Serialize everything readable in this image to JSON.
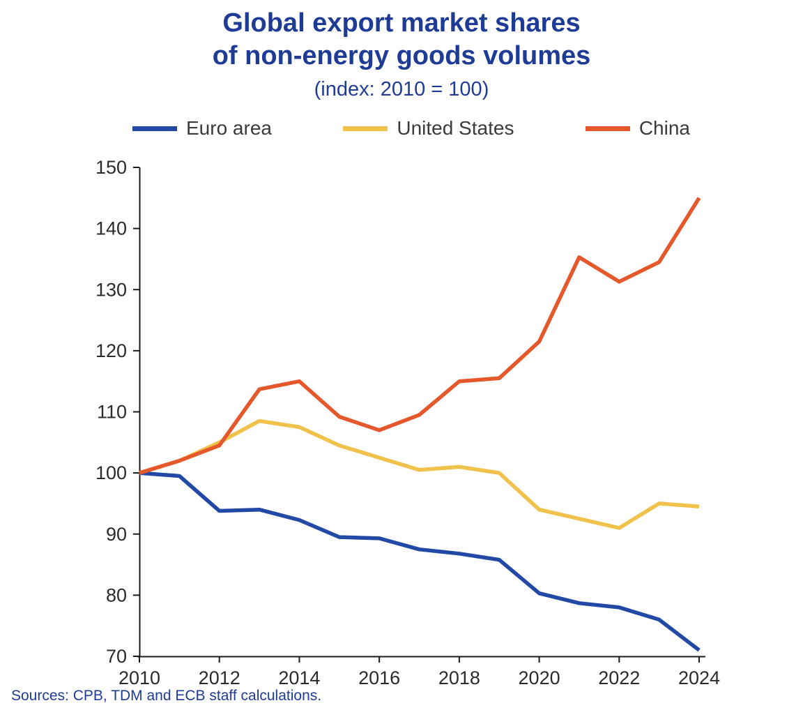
{
  "title_line1": "Global export market shares",
  "title_line2": "of non-energy goods volumes",
  "subtitle": "(index: 2010 = 100)",
  "source": "Sources: CPB, TDM and ECB staff calculations.",
  "colors": {
    "title": "#1E3C96",
    "axis": "#1a1a1a",
    "tick_label": "#2b2b2b"
  },
  "chart_data": {
    "type": "line",
    "title": "Global export market shares of non-energy goods volumes",
    "subtitle": "(index: 2010 = 100)",
    "xlabel": "",
    "ylabel": "",
    "x": [
      2010,
      2011,
      2012,
      2013,
      2014,
      2015,
      2016,
      2017,
      2018,
      2019,
      2020,
      2021,
      2022,
      2023,
      2024
    ],
    "series": [
      {
        "name": "Euro area",
        "color": "#2149A5",
        "values": [
          100,
          99.5,
          93.8,
          94,
          92.3,
          89.5,
          89.3,
          87.5,
          86.8,
          85.8,
          80.3,
          78.7,
          78,
          76,
          71
        ]
      },
      {
        "name": "United States",
        "color": "#F0C14B",
        "values": [
          100,
          102,
          105,
          108.5,
          107.5,
          104.5,
          102.5,
          100.5,
          101,
          100,
          94,
          92.5,
          91,
          95,
          94.5
        ]
      },
      {
        "name": "China",
        "color": "#E4582C",
        "values": [
          100,
          102,
          104.5,
          113.7,
          115,
          109.2,
          107,
          109.5,
          115,
          115.5,
          121.5,
          135.3,
          131.3,
          134.5,
          145
        ]
      }
    ],
    "ylim": [
      70,
      150
    ],
    "yticks": [
      70,
      80,
      90,
      100,
      110,
      120,
      130,
      140,
      150
    ],
    "xticks": [
      2010,
      2012,
      2014,
      2016,
      2018,
      2020,
      2022,
      2024
    ],
    "grid": false,
    "legend_position": "top"
  }
}
